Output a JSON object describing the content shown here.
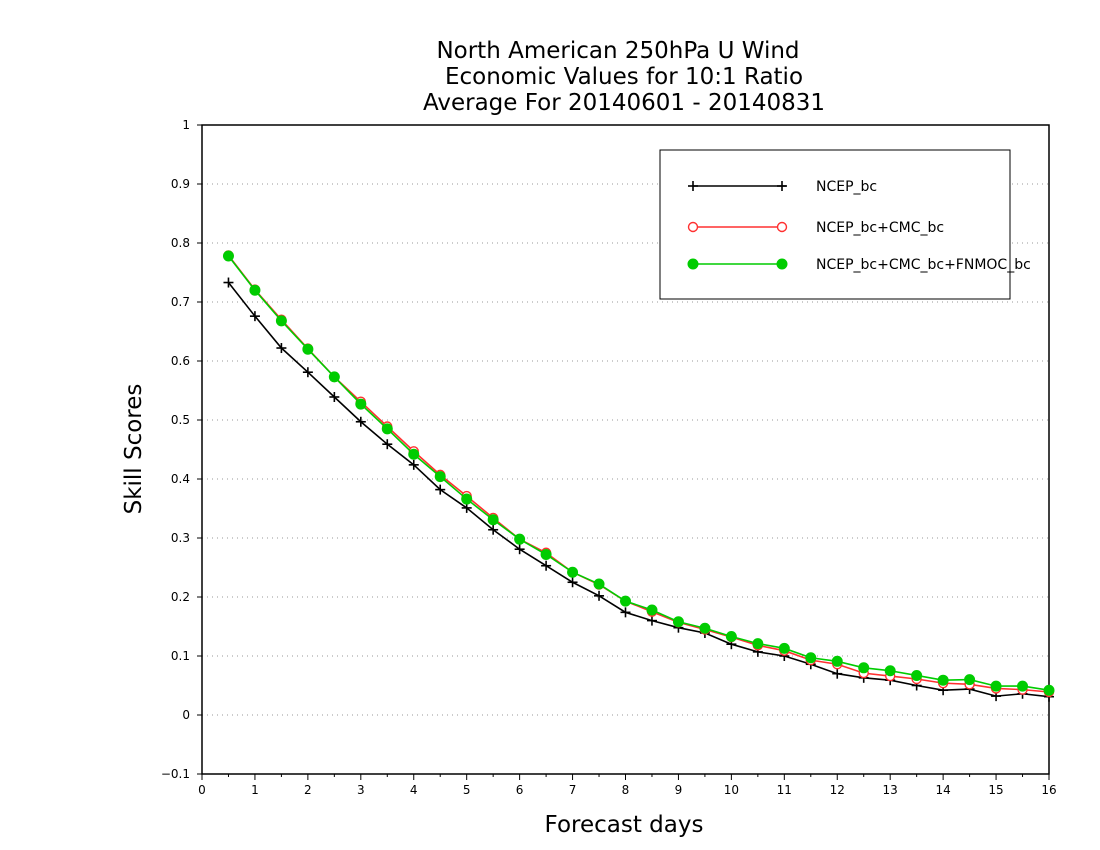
{
  "chart_data": {
    "type": "line",
    "title_lines": [
      "North American 250hPa U Wind",
      "Economic Values for 10:1 Ratio",
      "Average For 20140601 - 20140831"
    ],
    "xlabel": "Forecast days",
    "ylabel": "Skill Scores",
    "xlim": [
      0,
      16
    ],
    "ylim": [
      -0.1,
      1
    ],
    "x_ticks": [
      "0",
      "1",
      "2",
      "3",
      "4",
      "5",
      "6",
      "7",
      "8",
      "9",
      "10",
      "11",
      "12",
      "13",
      "14",
      "15",
      "16"
    ],
    "y_ticks": [
      "−0.1",
      "0",
      "0.1",
      "0.2",
      "0.3",
      "0.4",
      "0.5",
      "0.6",
      "0.7",
      "0.8",
      "0.9",
      "1"
    ],
    "y_tick_values": [
      -0.1,
      0,
      0.1,
      0.2,
      0.3,
      0.4,
      0.5,
      0.6,
      0.7,
      0.8,
      0.9,
      1.0
    ],
    "grid": "horizontal dotted",
    "legend_position": "top-right",
    "x": [
      0.5,
      1.0,
      1.5,
      2.0,
      2.5,
      3.0,
      3.5,
      4.0,
      4.5,
      5.0,
      5.5,
      6.0,
      6.5,
      7.0,
      7.5,
      8.0,
      8.5,
      9.0,
      9.5,
      10.0,
      10.5,
      11.0,
      11.5,
      12.0,
      12.5,
      13.0,
      13.5,
      14.0,
      14.5,
      15.0,
      15.5,
      16.0
    ],
    "series": [
      {
        "name": "NCEP_bc",
        "color": "#000000",
        "marker": "plus",
        "values": [
          0.733,
          0.676,
          0.622,
          0.581,
          0.539,
          0.497,
          0.459,
          0.424,
          0.382,
          0.351,
          0.314,
          0.281,
          0.253,
          0.225,
          0.202,
          0.174,
          0.16,
          0.148,
          0.139,
          0.12,
          0.107,
          0.1,
          0.086,
          0.07,
          0.063,
          0.059,
          0.05,
          0.042,
          0.044,
          0.032,
          0.036,
          0.031
        ]
      },
      {
        "name": "NCEP_bc+CMC_bc",
        "color": "#ff3030",
        "marker": "open-circle",
        "values": [
          0.779,
          0.721,
          0.67,
          0.621,
          0.573,
          0.531,
          0.489,
          0.447,
          0.407,
          0.371,
          0.334,
          0.298,
          0.275,
          0.242,
          0.221,
          0.193,
          0.175,
          0.157,
          0.145,
          0.132,
          0.118,
          0.109,
          0.093,
          0.086,
          0.071,
          0.066,
          0.061,
          0.054,
          0.052,
          0.045,
          0.043,
          0.039
        ]
      },
      {
        "name": "NCEP_bc+CMC_bc+FNMOC_bc",
        "color": "#00cc00",
        "marker": "filled-circle",
        "values": [
          0.778,
          0.72,
          0.668,
          0.62,
          0.573,
          0.527,
          0.485,
          0.442,
          0.404,
          0.366,
          0.331,
          0.298,
          0.272,
          0.242,
          0.222,
          0.193,
          0.178,
          0.158,
          0.147,
          0.133,
          0.121,
          0.113,
          0.097,
          0.091,
          0.08,
          0.075,
          0.067,
          0.059,
          0.06,
          0.049,
          0.049,
          0.042
        ]
      }
    ]
  }
}
